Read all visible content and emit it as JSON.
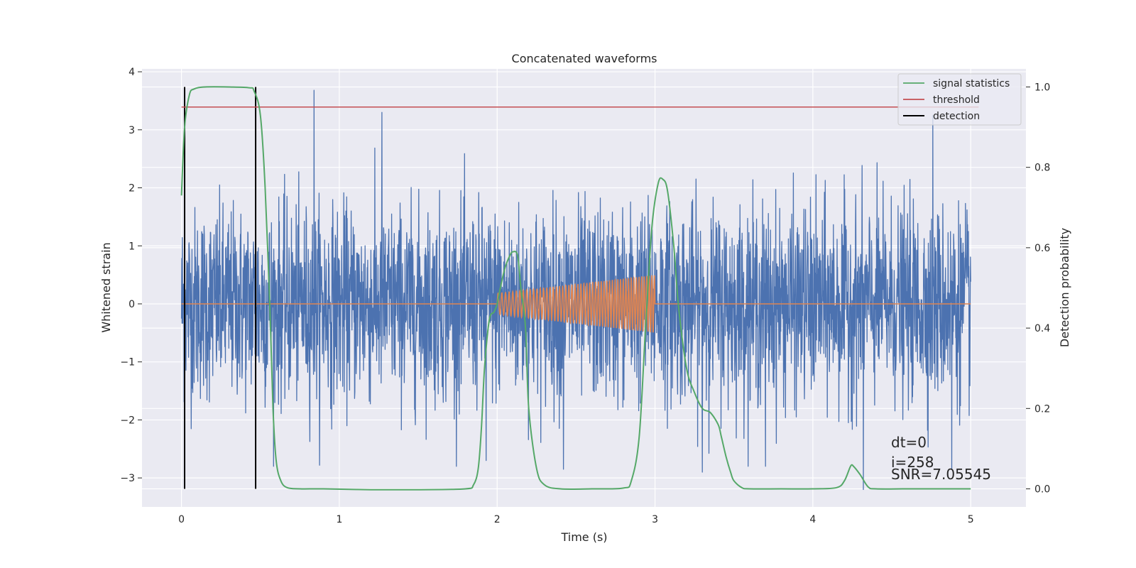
{
  "chart_data": {
    "type": "line",
    "title": "Concatenated waveforms",
    "xlabel": "Time (s)",
    "ylabel": "Whitened strain",
    "y2label": "Detection probability",
    "xlim": [
      -0.25,
      5.35
    ],
    "ylim": [
      -3.5,
      4.05
    ],
    "y2lim": [
      -0.045,
      1.045
    ],
    "x_ticks": [
      0,
      1,
      2,
      3,
      4,
      5
    ],
    "y_ticks": [
      -3,
      -2,
      -1,
      0,
      1,
      2,
      3,
      4
    ],
    "y2_ticks": [
      0.0,
      0.2,
      0.4,
      0.6,
      0.8,
      1.0
    ],
    "x_tick_labels": [
      "0",
      "1",
      "2",
      "3",
      "4",
      "5"
    ],
    "y_tick_labels": [
      "−3",
      "−2",
      "−1",
      "0",
      "1",
      "2",
      "3",
      "4"
    ],
    "y2_tick_labels": [
      "0.0",
      "0.2",
      "0.4",
      "0.6",
      "0.8",
      "1.0"
    ],
    "grid": true,
    "legend_position": "top-right",
    "colors": {
      "strain": "#4c72b0",
      "injection": "#dd8452",
      "signal": "#55a868",
      "threshold": "#c44e52",
      "detection": "#000000",
      "background": "#eaeaf2",
      "grid": "#ffffff"
    },
    "series": [
      {
        "name": "signal statistics",
        "axis": "right",
        "x": [
          0,
          0.02,
          0.05,
          0.08,
          0.15,
          0.3,
          0.43,
          0.46,
          0.5,
          0.53,
          0.56,
          0.58,
          0.6,
          0.63,
          0.67,
          0.75,
          0.9,
          1.2,
          1.5,
          1.8,
          1.85,
          1.88,
          1.9,
          1.92,
          1.95,
          1.98,
          2.0,
          2.02,
          2.05,
          2.08,
          2.1,
          2.13,
          2.15,
          2.18,
          2.2,
          2.25,
          2.3,
          2.4,
          2.6,
          2.8,
          2.85,
          2.9,
          2.94,
          2.98,
          3.02,
          3.05,
          3.08,
          3.12,
          3.15,
          3.2,
          3.25,
          3.3,
          3.35,
          3.4,
          3.42,
          3.45,
          3.48,
          3.5,
          3.55,
          3.6,
          3.8,
          4.0,
          4.15,
          4.2,
          4.24,
          4.26,
          4.3,
          4.35,
          4.4,
          4.6,
          4.8,
          5.0
        ],
        "values": [
          0.73,
          0.9,
          0.98,
          0.995,
          1.0,
          1.0,
          0.998,
          0.99,
          0.93,
          0.75,
          0.45,
          0.2,
          0.07,
          0.02,
          0.003,
          0.0,
          0.0,
          -0.002,
          -0.002,
          0.0,
          0.01,
          0.05,
          0.15,
          0.3,
          0.42,
          0.44,
          0.46,
          0.5,
          0.55,
          0.58,
          0.59,
          0.58,
          0.5,
          0.4,
          0.2,
          0.05,
          0.01,
          0.0,
          0.0,
          0.002,
          0.02,
          0.13,
          0.4,
          0.65,
          0.76,
          0.77,
          0.74,
          0.6,
          0.45,
          0.3,
          0.24,
          0.2,
          0.19,
          0.16,
          0.13,
          0.08,
          0.04,
          0.02,
          0.003,
          0.0,
          0.0,
          0.0,
          0.003,
          0.02,
          0.057,
          0.055,
          0.035,
          0.005,
          0.0,
          0.0,
          0.0,
          0.0
        ]
      },
      {
        "name": "threshold",
        "axis": "right",
        "x": [
          0,
          5.05
        ],
        "values": [
          0.95,
          0.95
        ]
      },
      {
        "name": "detection",
        "axis": "right",
        "type": "vlines",
        "x": [
          0.02,
          0.47
        ],
        "y_range": [
          0.0,
          1.0
        ]
      },
      {
        "name": "",
        "axis": "left",
        "x_range": [
          0,
          5
        ],
        "noise_scale": 0.82,
        "peaks": [
          [
            0.84,
            3.68
          ],
          [
            1.27,
            3.3
          ],
          [
            4.76,
            3.25
          ],
          [
            4.32,
            -3.2
          ],
          [
            3.3,
            -2.9
          ],
          [
            2.42,
            -2.85
          ],
          [
            1.93,
            -2.7
          ],
          [
            4.88,
            -2.85
          ],
          [
            3.7,
            -2.8
          ]
        ]
      },
      {
        "name": "",
        "axis": "left",
        "x_range": [
          2.0,
          3.0
        ],
        "amplitude_start": 0.18,
        "amplitude_end": 0.5,
        "cycles": 42
      }
    ],
    "annotations": [
      "dt=0",
      "i=258",
      "SNR=7.05545"
    ]
  }
}
